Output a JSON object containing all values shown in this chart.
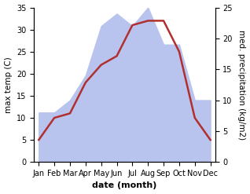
{
  "months": [
    "Jan",
    "Feb",
    "Mar",
    "Apr",
    "May",
    "Jun",
    "Jul",
    "Aug",
    "Sep",
    "Oct",
    "Nov",
    "Dec"
  ],
  "temperature": [
    5,
    10,
    11,
    18,
    22,
    24,
    31,
    32,
    32,
    25,
    10,
    5
  ],
  "precipitation": [
    8,
    8,
    10,
    14,
    22,
    24,
    22,
    25,
    19,
    19,
    10,
    10
  ],
  "temp_color": "#b03030",
  "precip_color": "#b8c4ee",
  "ylim_left": [
    0,
    35
  ],
  "ylim_right": [
    0,
    25
  ],
  "xlabel": "date (month)",
  "ylabel_left": "max temp (C)",
  "ylabel_right": "med. precipitation (kg/m2)",
  "bg_color": "#ffffff",
  "label_fontsize": 7.5,
  "tick_fontsize": 7,
  "line_width": 1.8
}
